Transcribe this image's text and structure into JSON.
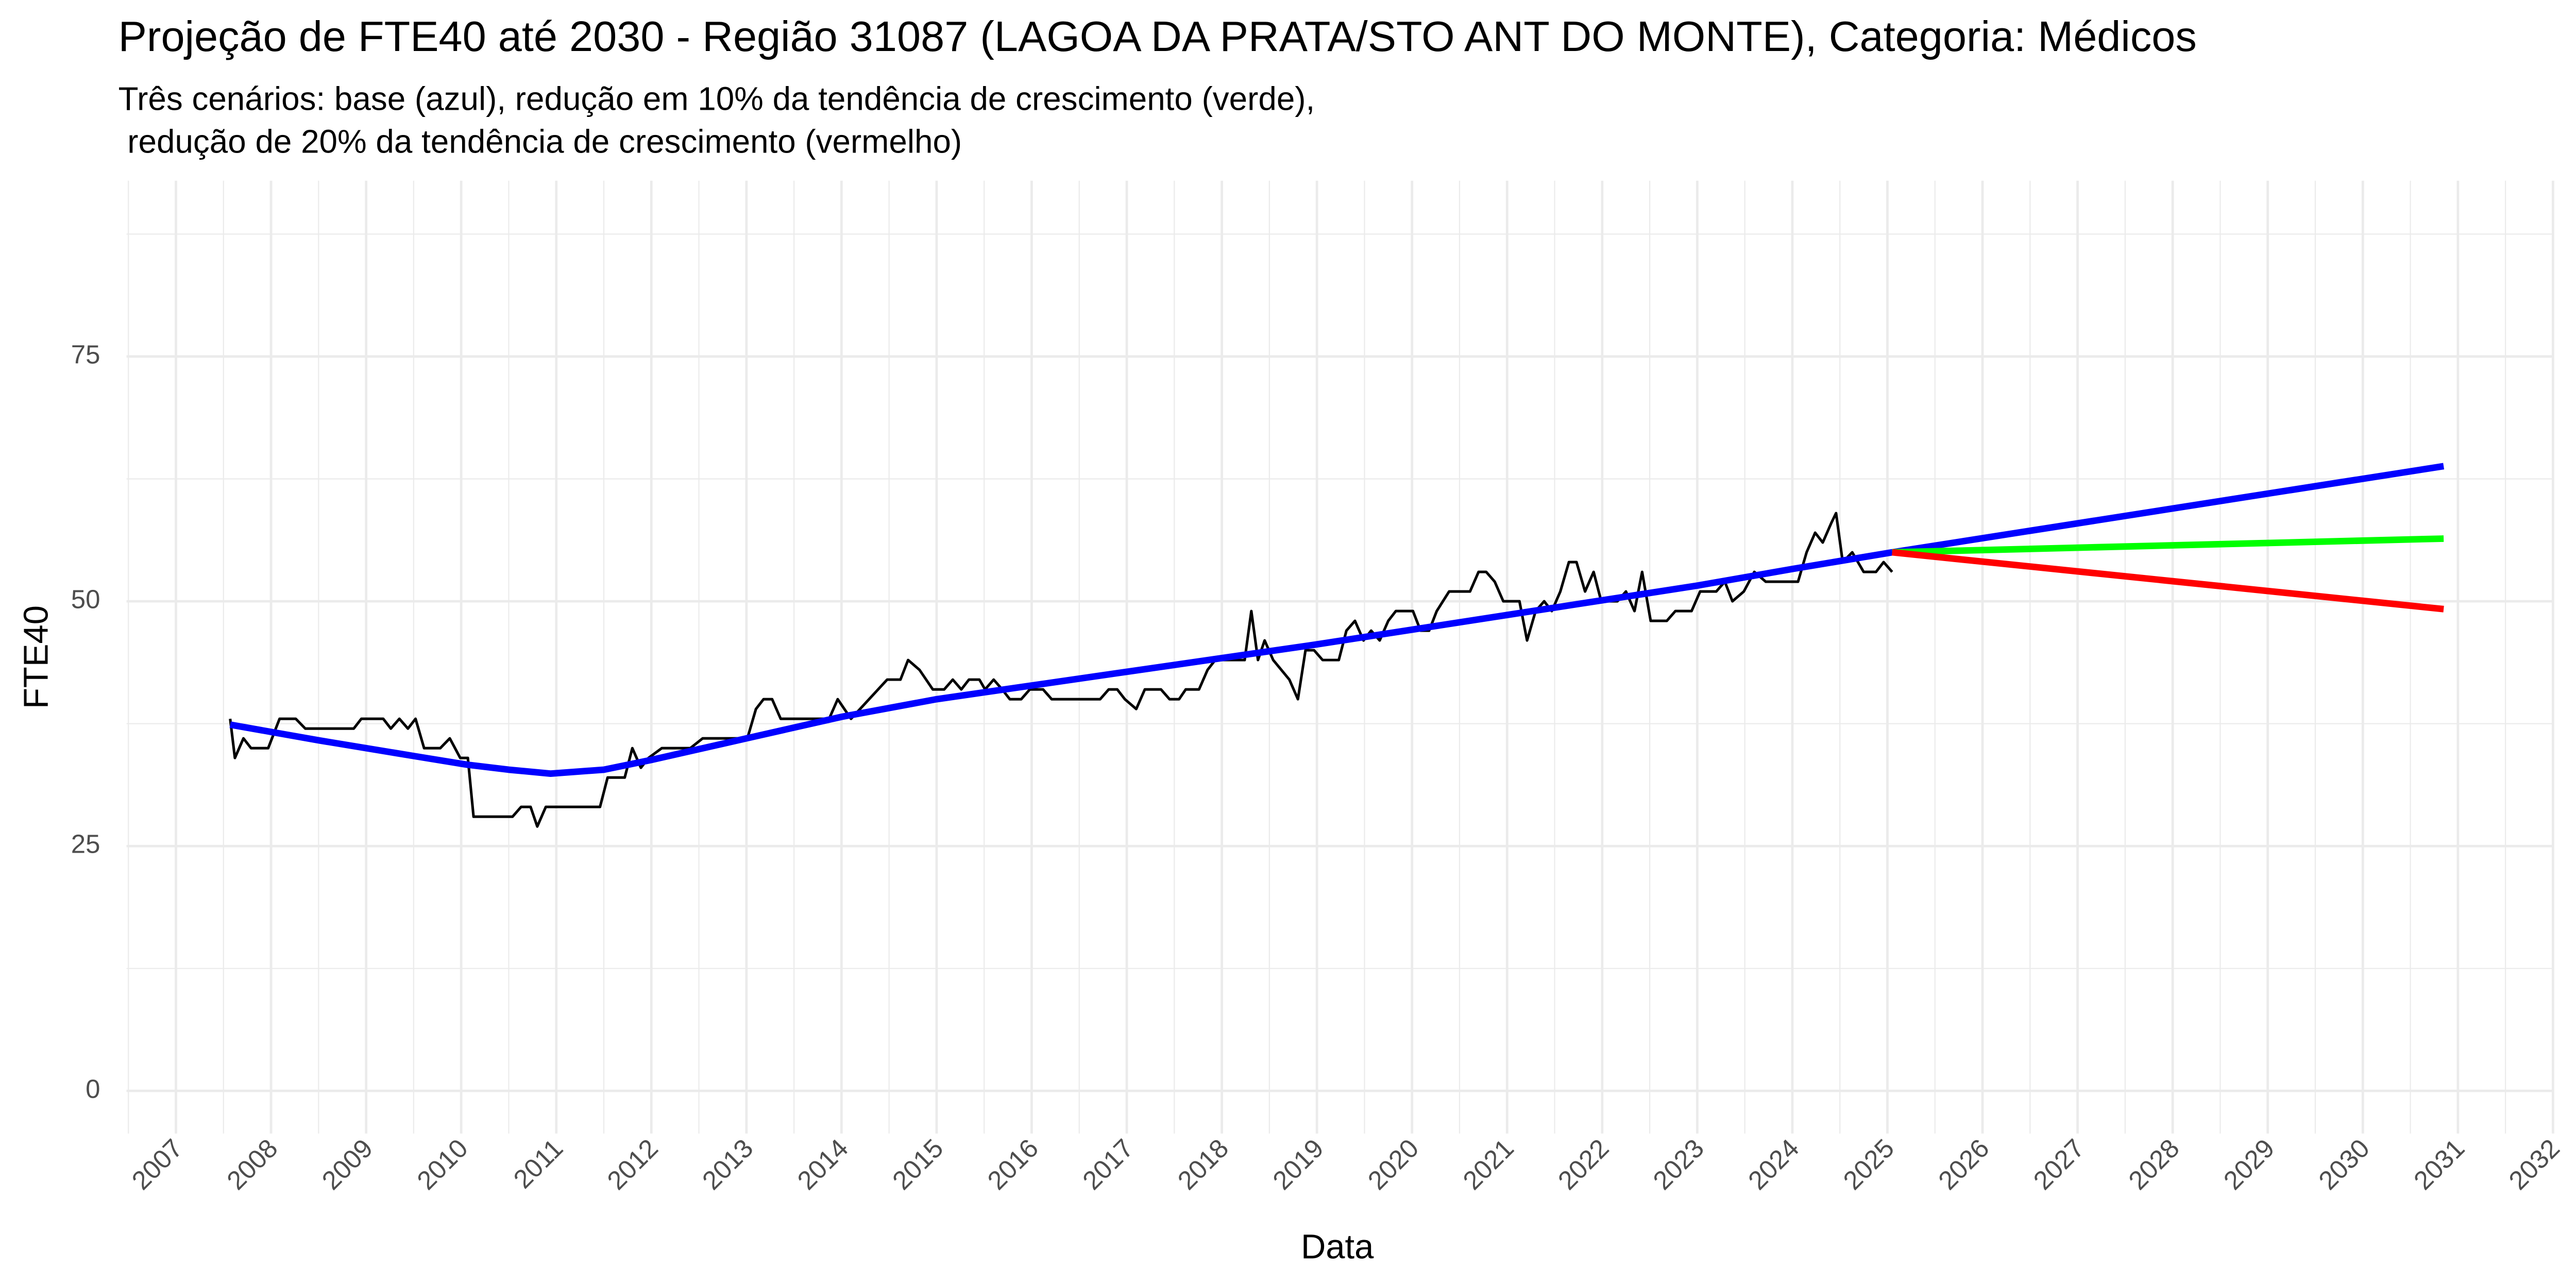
{
  "chart_data": {
    "type": "line",
    "title": "Projeção de FTE40 até 2030 - Região 31087 (LAGOA DA PRATA/STO ANT DO MONTE), Categoria: Médicos",
    "subtitle": [
      "Três cenários: base (azul), redução em 10% da tendência de crescimento (verde),",
      " redução de 20% da tendência de crescimento (vermelho)"
    ],
    "xlabel": "Data",
    "ylabel": "FTE40",
    "xlim": [
      2006.48,
      2032.0
    ],
    "ylim": [
      -4.36,
      92.95
    ],
    "xticks": [
      2007,
      2008,
      2009,
      2010,
      2011,
      2012,
      2013,
      2014,
      2015,
      2016,
      2017,
      2018,
      2019,
      2020,
      2021,
      2022,
      2023,
      2024,
      2025,
      2026,
      2027,
      2028,
      2029,
      2030,
      2031,
      2032
    ],
    "xminorticks": [
      2006.5,
      2007.5,
      2008.5,
      2009.5,
      2010.5,
      2011.5,
      2012.5,
      2013.5,
      2014.5,
      2015.5,
      2016.5,
      2017.5,
      2018.5,
      2019.5,
      2020.5,
      2021.5,
      2022.5,
      2023.5,
      2024.5,
      2025.5,
      2026.5,
      2027.5,
      2028.5,
      2029.5,
      2030.5,
      2031.5
    ],
    "yticks": [
      0,
      25,
      50,
      75
    ],
    "yminorticks": [
      12.5,
      37.5,
      62.5,
      87.5
    ],
    "grid": true,
    "series": [
      {
        "color": "#000000",
        "linewidth": 1.6,
        "x": [
          2007.57,
          2007.62,
          2007.71,
          2007.79,
          2007.97,
          2008.09,
          2008.26,
          2008.36,
          2008.87,
          2008.95,
          2009.18,
          2009.26,
          2009.35,
          2009.44,
          2009.52,
          2009.61,
          2009.78,
          2009.88,
          2009.99,
          2010.07,
          2010.13,
          2010.54,
          2010.63,
          2010.73,
          2010.8,
          2010.89,
          2011.46,
          2011.54,
          2011.72,
          2011.8,
          2011.89,
          2011.97,
          2012.11,
          2012.23,
          2012.41,
          2012.54,
          2013.01,
          2013.1,
          2013.18,
          2013.27,
          2013.36,
          2013.87,
          2013.96,
          2014.1,
          2014.48,
          2014.62,
          2014.7,
          2014.82,
          2014.96,
          2015.08,
          2015.17,
          2015.26,
          2015.34,
          2015.45,
          2015.51,
          2015.6,
          2015.69,
          2015.77,
          2015.89,
          2015.98,
          2016.12,
          2016.21,
          2016.72,
          2016.81,
          2016.9,
          2016.98,
          2017.1,
          2017.19,
          2017.36,
          2017.45,
          2017.55,
          2017.62,
          2017.76,
          2017.85,
          2017.93,
          2018.24,
          2018.31,
          2018.38,
          2018.45,
          2018.54,
          2018.71,
          2018.8,
          2018.88,
          2018.97,
          2019.06,
          2019.23,
          2019.31,
          2019.4,
          2019.49,
          2019.57,
          2019.66,
          2019.75,
          2019.83,
          2020.01,
          2020.09,
          2020.18,
          2020.26,
          2020.39,
          2020.61,
          2020.7,
          2020.78,
          2020.87,
          2020.96,
          2021.13,
          2021.21,
          2021.3,
          2021.39,
          2021.47,
          2021.56,
          2021.65,
          2021.73,
          2021.82,
          2021.91,
          2021.99,
          2022.16,
          2022.25,
          2022.34,
          2022.42,
          2022.51,
          2022.68,
          2022.77,
          2022.94,
          2023.03,
          2023.2,
          2023.29,
          2023.37,
          2023.49,
          2023.6,
          2023.72,
          2023.98,
          2024.06,
          2024.15,
          2024.24,
          2024.32,
          2024.41,
          2024.46,
          2024.53,
          2024.63,
          2024.75,
          2024.88,
          2024.96,
          2025.05
        ],
        "values": [
          38,
          34,
          36,
          35,
          35,
          38,
          38,
          37,
          37,
          38,
          38,
          37,
          38,
          37,
          38,
          35,
          35,
          36,
          34,
          34,
          28,
          28,
          29,
          29,
          27,
          29,
          29,
          32,
          32,
          35,
          33,
          34,
          35,
          35,
          35,
          36,
          36,
          39,
          40,
          40,
          38,
          38,
          40,
          38,
          42,
          42,
          44,
          43,
          41,
          41,
          42,
          41,
          42,
          42,
          41,
          42,
          41,
          40,
          40,
          41,
          41,
          40,
          40,
          41,
          41,
          40,
          39,
          41,
          41,
          40,
          40,
          41,
          41,
          43,
          44,
          44,
          49,
          44,
          46,
          44,
          42,
          40,
          45,
          45,
          44,
          44,
          47,
          48,
          46,
          47,
          46,
          48,
          49,
          49,
          47,
          47,
          49,
          51,
          51,
          53,
          53,
          52,
          50,
          50,
          46,
          49,
          50,
          49,
          51,
          54,
          54,
          51,
          53,
          50,
          50,
          51,
          49,
          53,
          48,
          48,
          49,
          49,
          51,
          51,
          52,
          50,
          51,
          53,
          52,
          52,
          52,
          55,
          57,
          56,
          58,
          59,
          54,
          55,
          53,
          53,
          54,
          53
        ]
      },
      {
        "color": "#0000ff",
        "linewidth": 4,
        "x": [
          2007.57,
          2008.5,
          2009.5,
          2010.07,
          2010.5,
          2010.94,
          2011.5,
          2012,
          2013,
          2014,
          2015,
          2016,
          2017,
          2018,
          2019,
          2020,
          2021,
          2022,
          2023,
          2024,
          2025.05,
          2030.85
        ],
        "values": [
          37.4,
          35.8,
          34.2,
          33.3,
          32.8,
          32.4,
          32.8,
          33.8,
          36,
          38.2,
          40,
          41.4,
          42.8,
          44.2,
          45.6,
          47.1,
          48.6,
          50.1,
          51.6,
          53.3,
          55,
          63.8
        ]
      },
      {
        "color": "#00ff00",
        "linewidth": 4,
        "x": [
          2025.05,
          2030.85
        ],
        "values": [
          55,
          56.4
        ]
      },
      {
        "color": "#ff0000",
        "linewidth": 4,
        "x": [
          2025.05,
          2030.85
        ],
        "values": [
          55,
          49.2
        ]
      }
    ]
  }
}
